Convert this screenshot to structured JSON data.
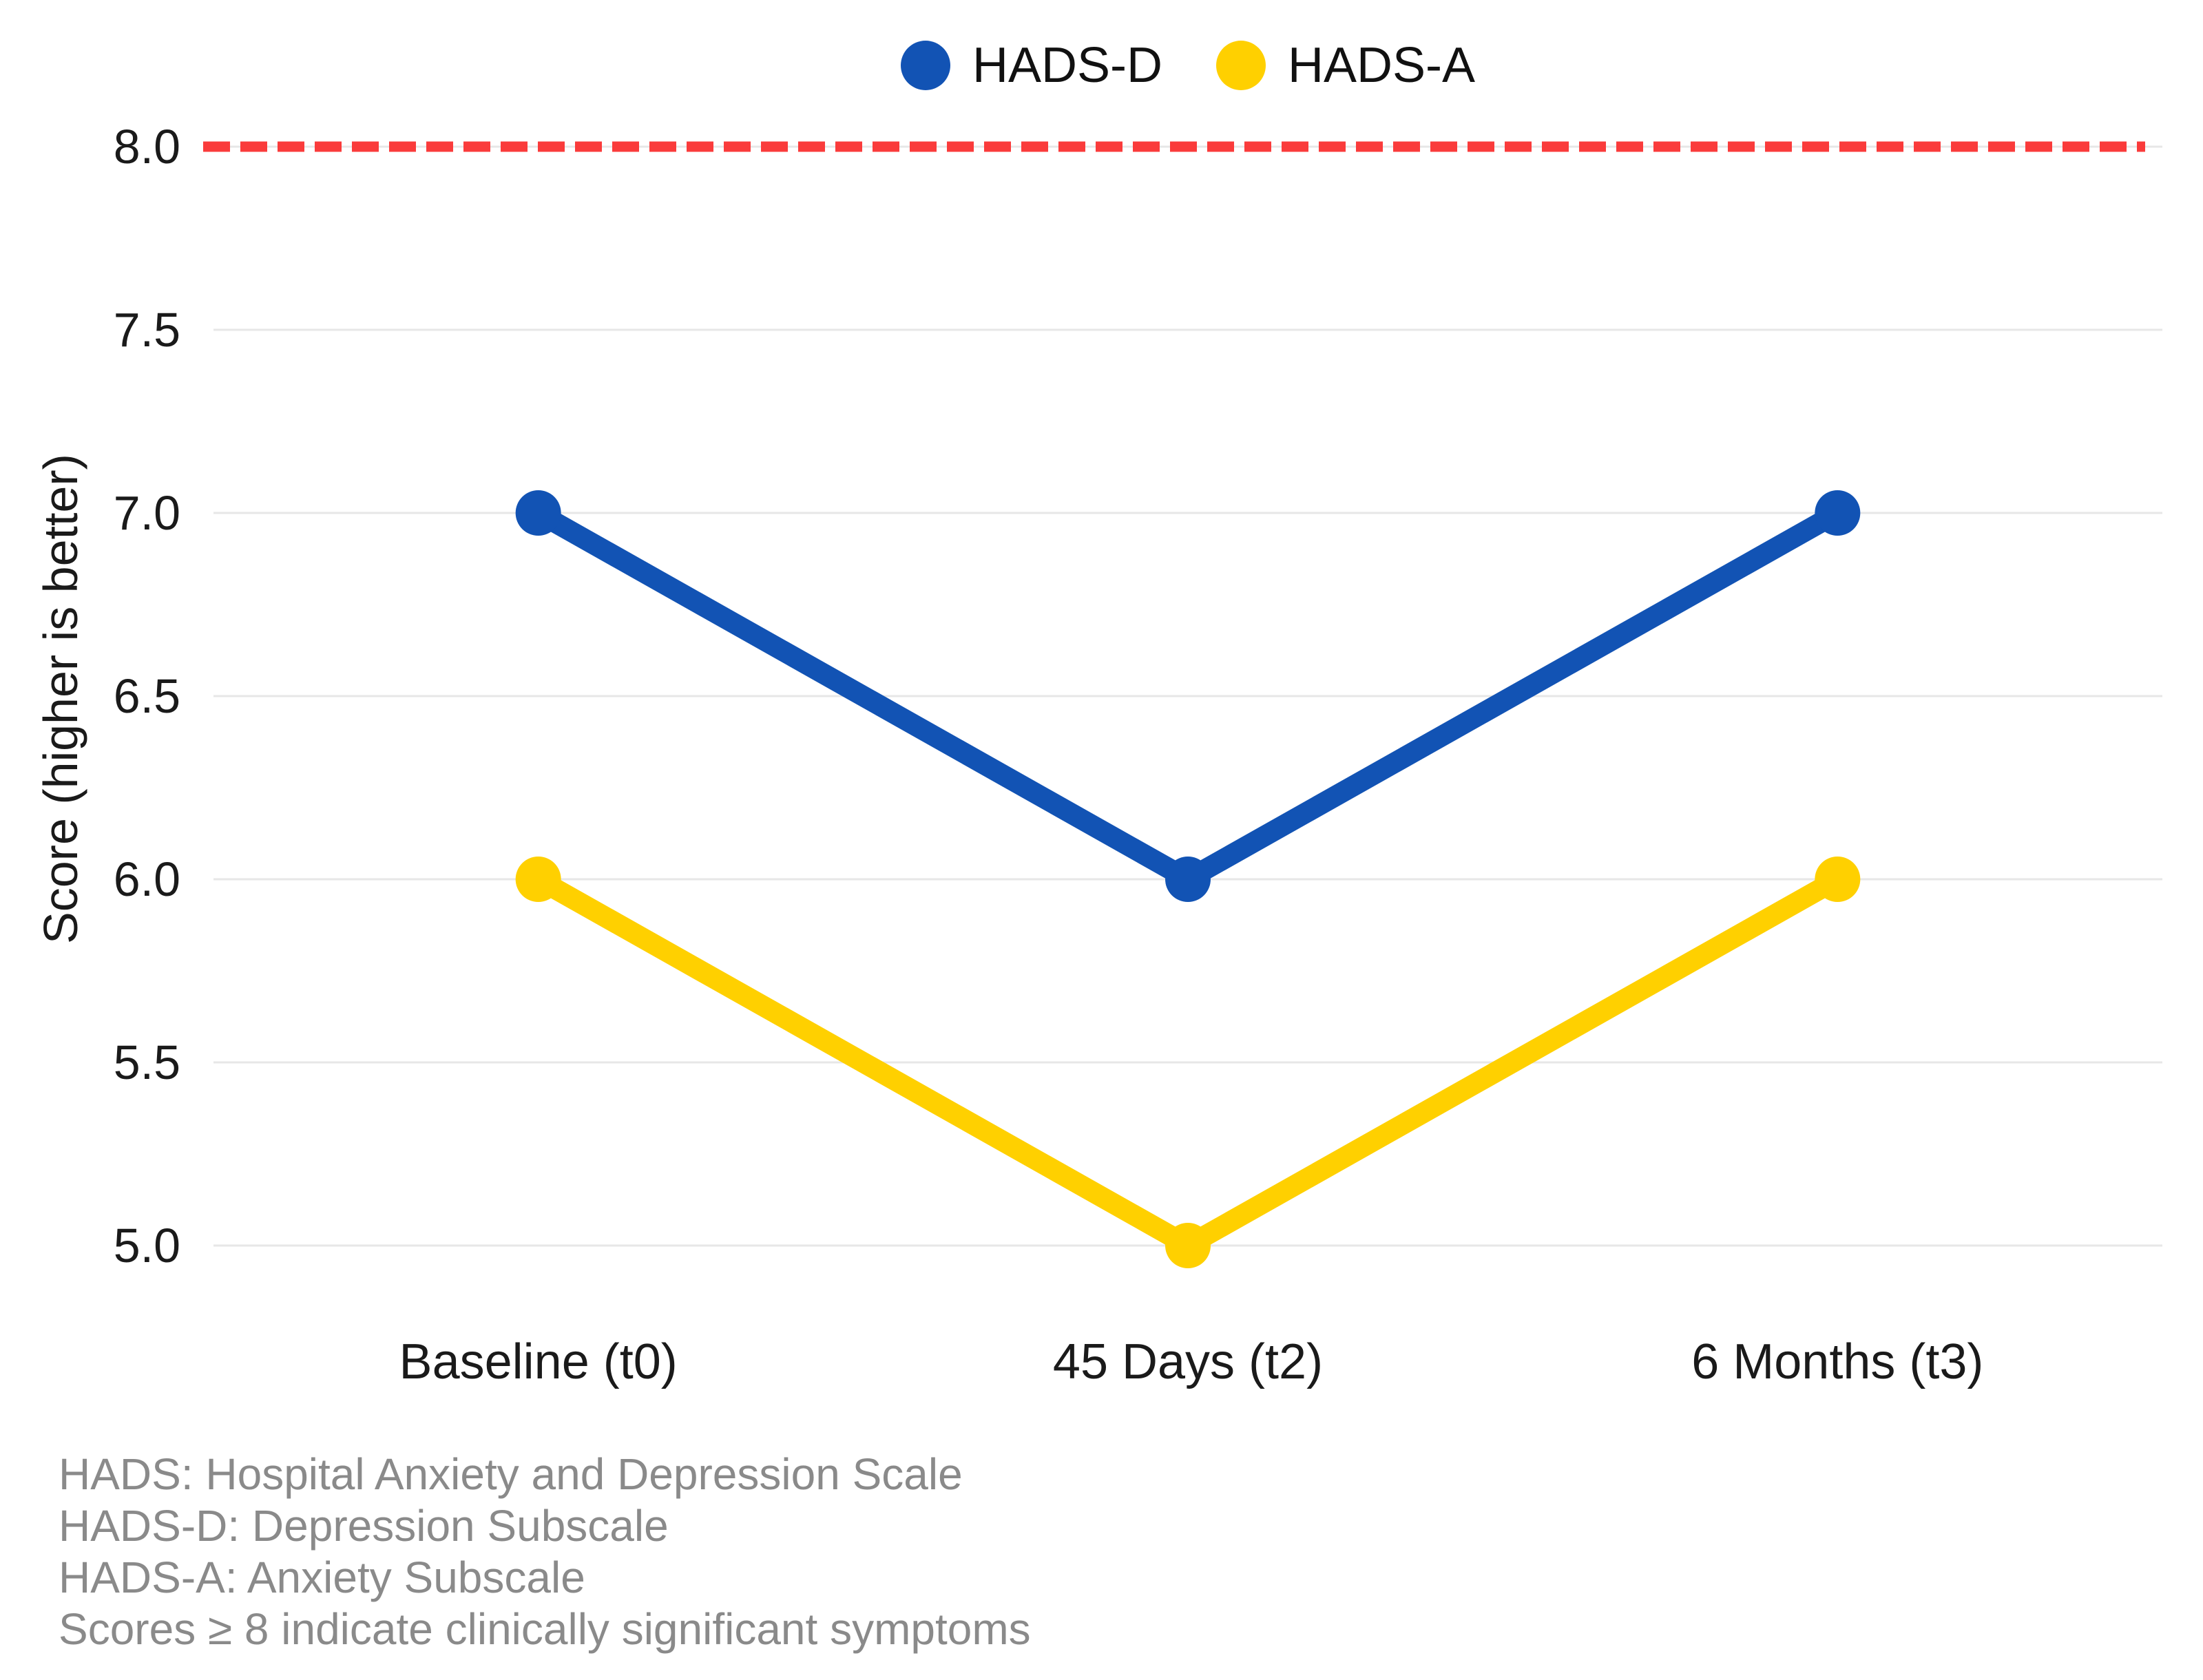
{
  "chart_data": {
    "type": "line",
    "categories": [
      "Baseline (t0)",
      "45 Days (t2)",
      "6 Months (t3)"
    ],
    "series": [
      {
        "name": "HADS-D",
        "color": "#1253b4",
        "values": [
          7.0,
          6.0,
          7.0
        ]
      },
      {
        "name": "HADS-A",
        "color": "#ffd000",
        "values": [
          6.0,
          5.0,
          6.0
        ]
      }
    ],
    "ylabel": "Score (higher is better)",
    "ytick_labels": [
      "8.0",
      "7.5",
      "7.0",
      "6.5",
      "6.0",
      "5.5",
      "5.0"
    ],
    "ylim": [
      5.0,
      8.0
    ],
    "grid": true,
    "legend_position": "top-center",
    "threshold_line": {
      "value": 8.0,
      "color": "#fa3b3b",
      "style": "dashed"
    }
  },
  "footnotes": {
    "lines": [
      "HADS: Hospital Anxiety and Depression Scale",
      "HADS-D: Depression Subscale",
      "HADS-A: Anxiety Subscale",
      "Scores ≥ 8 indicate clinically significant symptoms"
    ]
  },
  "colors": {
    "background": "#ffffff",
    "gridline": "#e7e7e7",
    "axis_text": "#1a1a1a",
    "footnote_text": "#8a8a8a"
  }
}
